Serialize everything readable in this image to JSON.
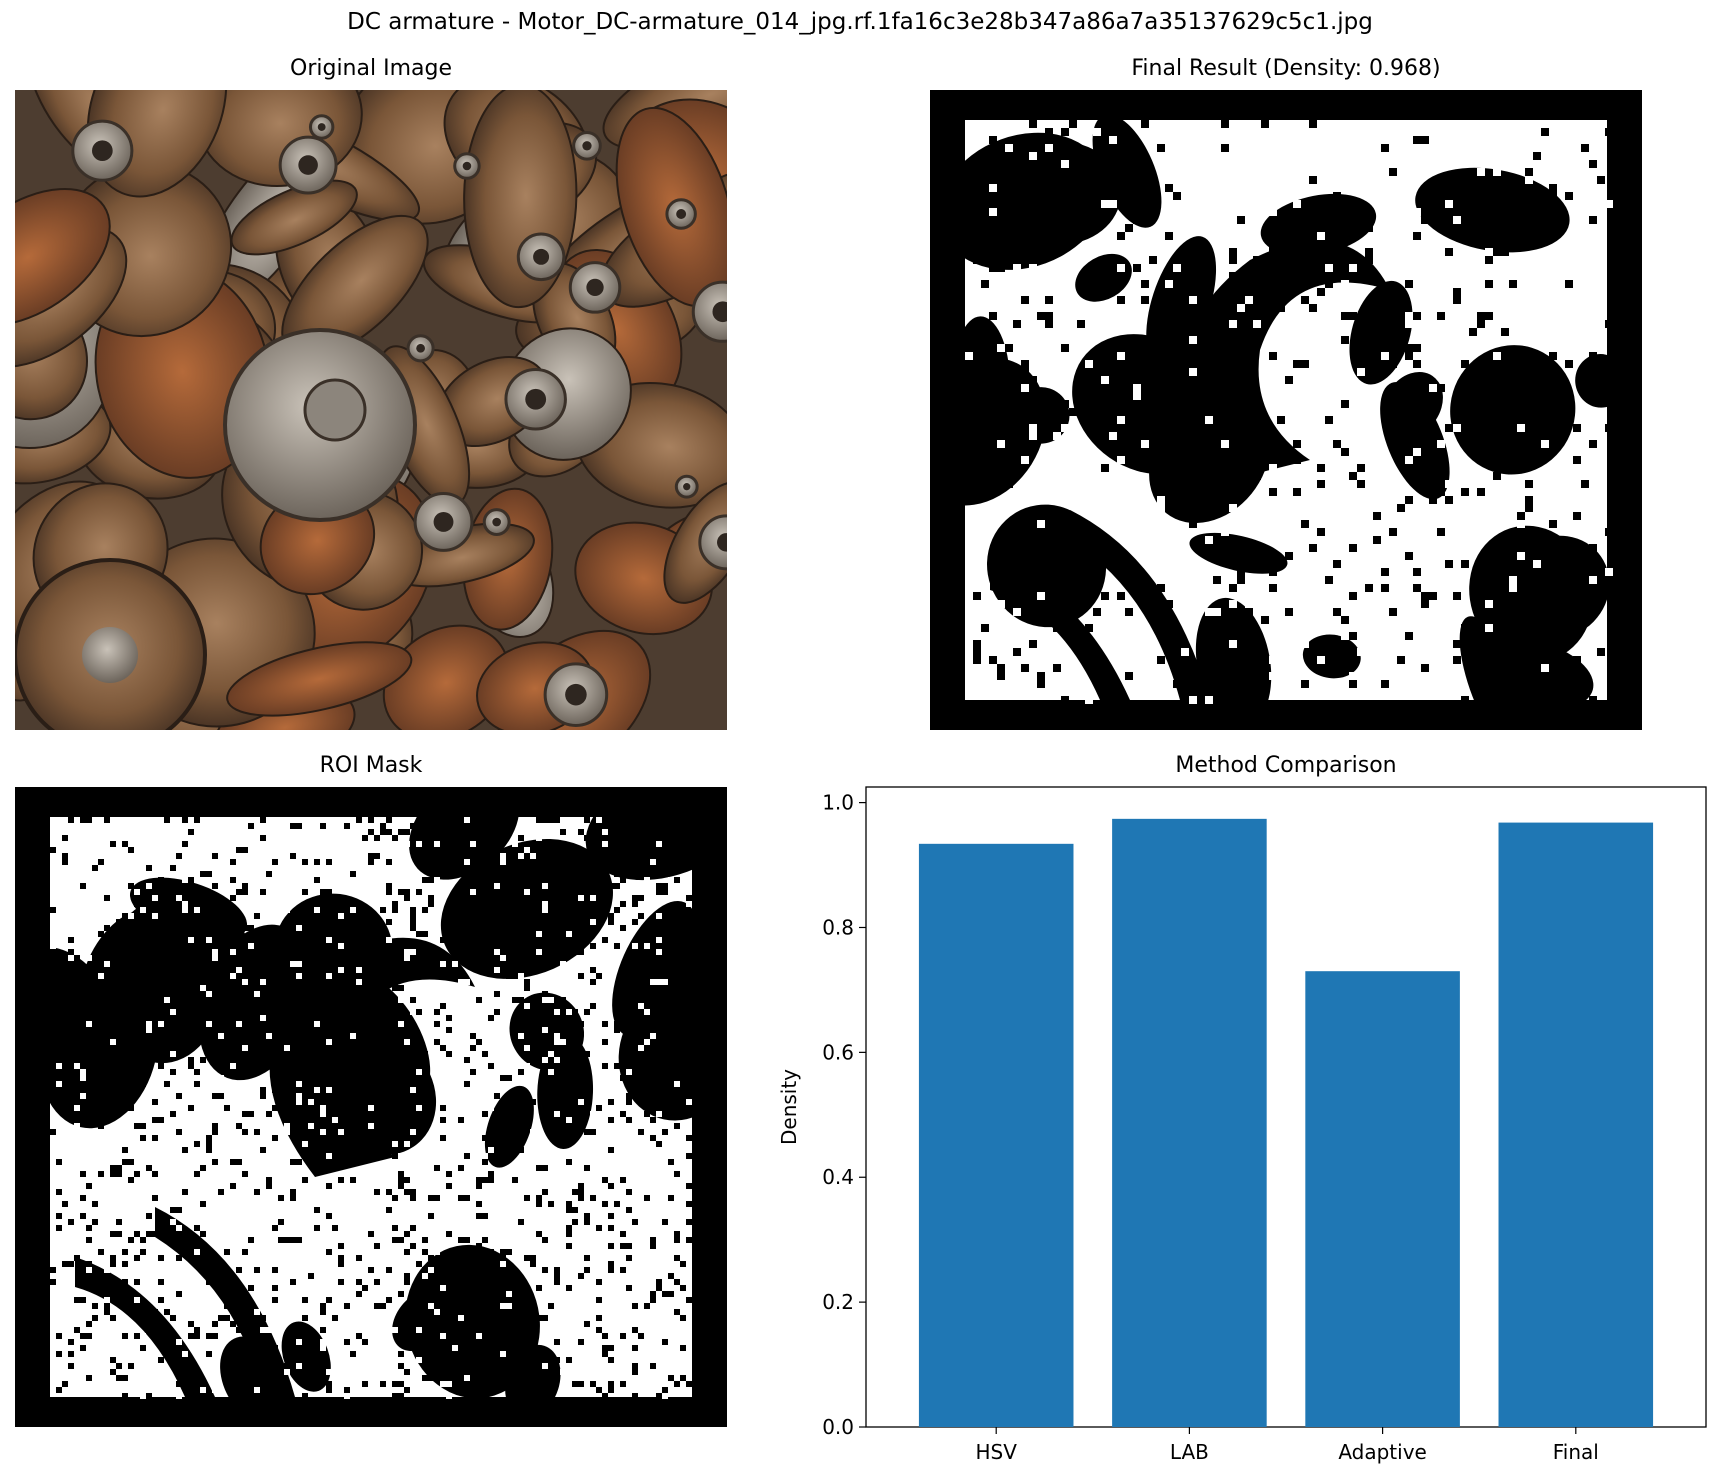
{
  "figure_title": "DC armature - Motor_DC-armature_014_jpg.rf.1fa16c3e28b347a86a7a35137629c5c1.jpg",
  "panels": {
    "original": {
      "title": "Original Image"
    },
    "final": {
      "title": "Final Result (Density: 0.968)"
    },
    "roi": {
      "title": "ROI Mask"
    },
    "chart": {
      "title": "Method Comparison"
    }
  },
  "colors": {
    "bar": "#1f77b4",
    "mask_fg": "#ffffff",
    "mask_bg": "#000000"
  },
  "chart_data": {
    "type": "bar",
    "title": "Method Comparison",
    "categories": [
      "HSV",
      "LAB",
      "Adaptive",
      "Final"
    ],
    "values": [
      0.934,
      0.974,
      0.73,
      0.968
    ],
    "xlabel": "",
    "ylabel": "Density",
    "ylim": [
      0,
      1.025
    ],
    "yticks": [
      0.0,
      0.2,
      0.4,
      0.6,
      0.8,
      1.0
    ],
    "ytick_labels": [
      "0.0",
      "0.2",
      "0.4",
      "0.6",
      "0.8",
      "1.0"
    ],
    "grid": false
  }
}
